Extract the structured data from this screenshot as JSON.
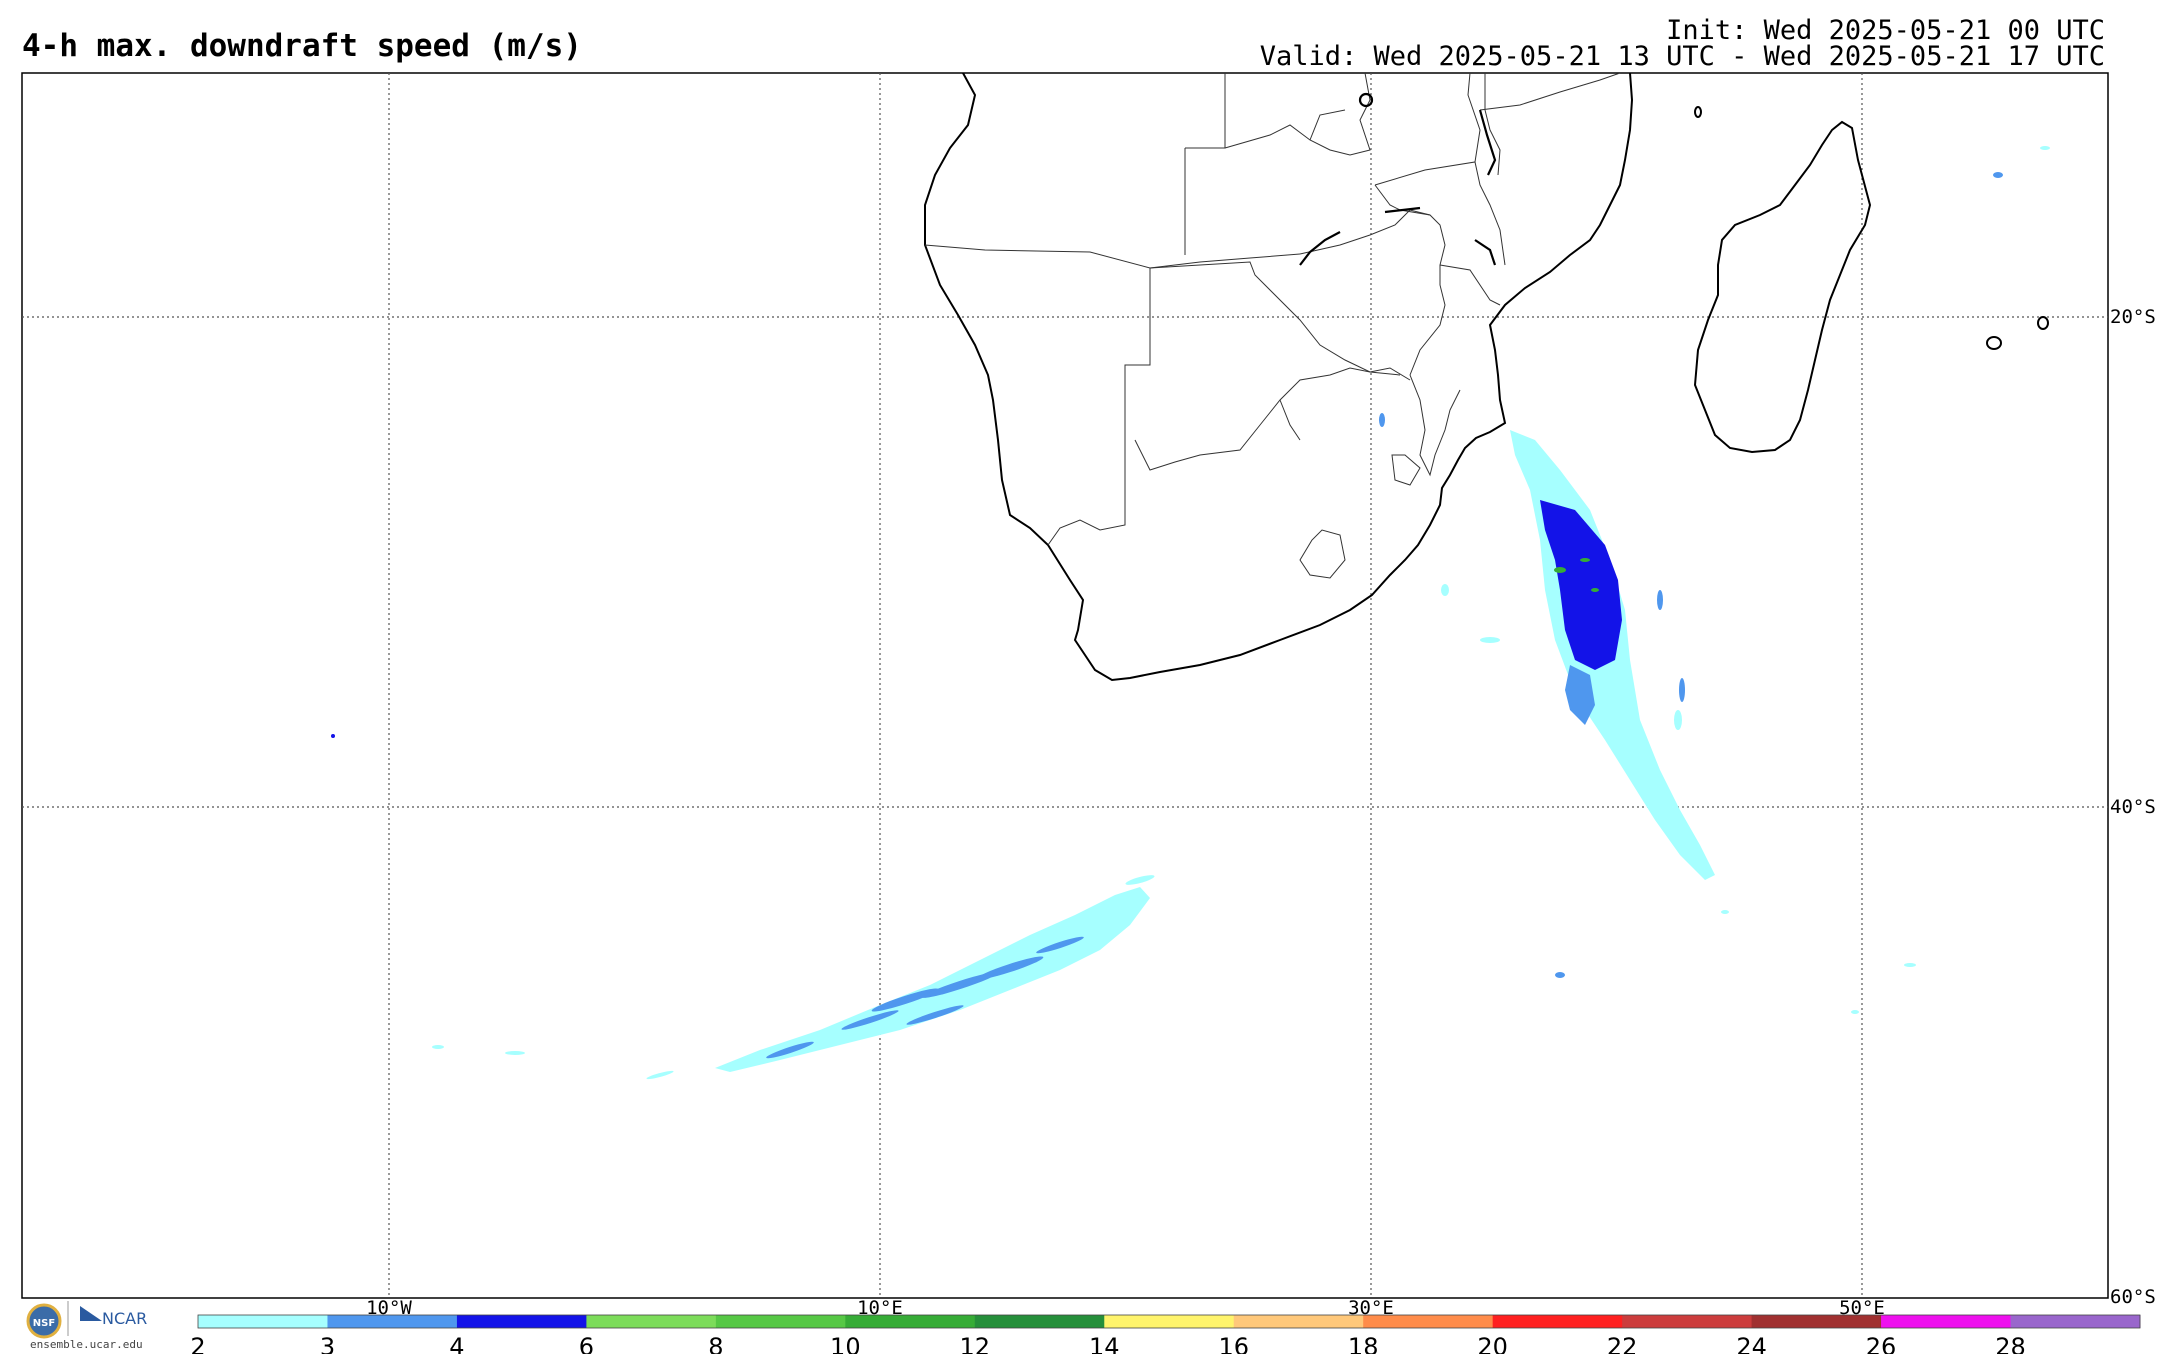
{
  "title": "4-h max. downdraft speed (m/s)",
  "init_line": "Init: Wed 2025-05-21 00 UTC",
  "valid_line": "Valid: Wed 2025-05-21 13 UTC - Wed 2025-05-21 17 UTC",
  "lat_labels": [
    "20°S",
    "40°S",
    "60°S"
  ],
  "lon_labels": [
    "10°W",
    "10°E",
    "30°E",
    "50°E"
  ],
  "colorbar": {
    "ticks": [
      "2",
      "3",
      "4",
      "6",
      "8",
      "10",
      "12",
      "14",
      "16",
      "18",
      "20",
      "22",
      "24",
      "26",
      "28"
    ],
    "colors": [
      "#a6ffff",
      "#4f97ee",
      "#1313e8",
      "#7cdc5a",
      "#56c845",
      "#36ac36",
      "#258f3a",
      "#fff46c",
      "#ffc87a",
      "#ff8c4a",
      "#ff2020",
      "#cc3c3c",
      "#a03030",
      "#ee10ee",
      "#9966cc"
    ]
  },
  "logos": {
    "nsf": "NSF",
    "ncar": "NCAR",
    "url": "ensemble.ucar.edu"
  }
}
